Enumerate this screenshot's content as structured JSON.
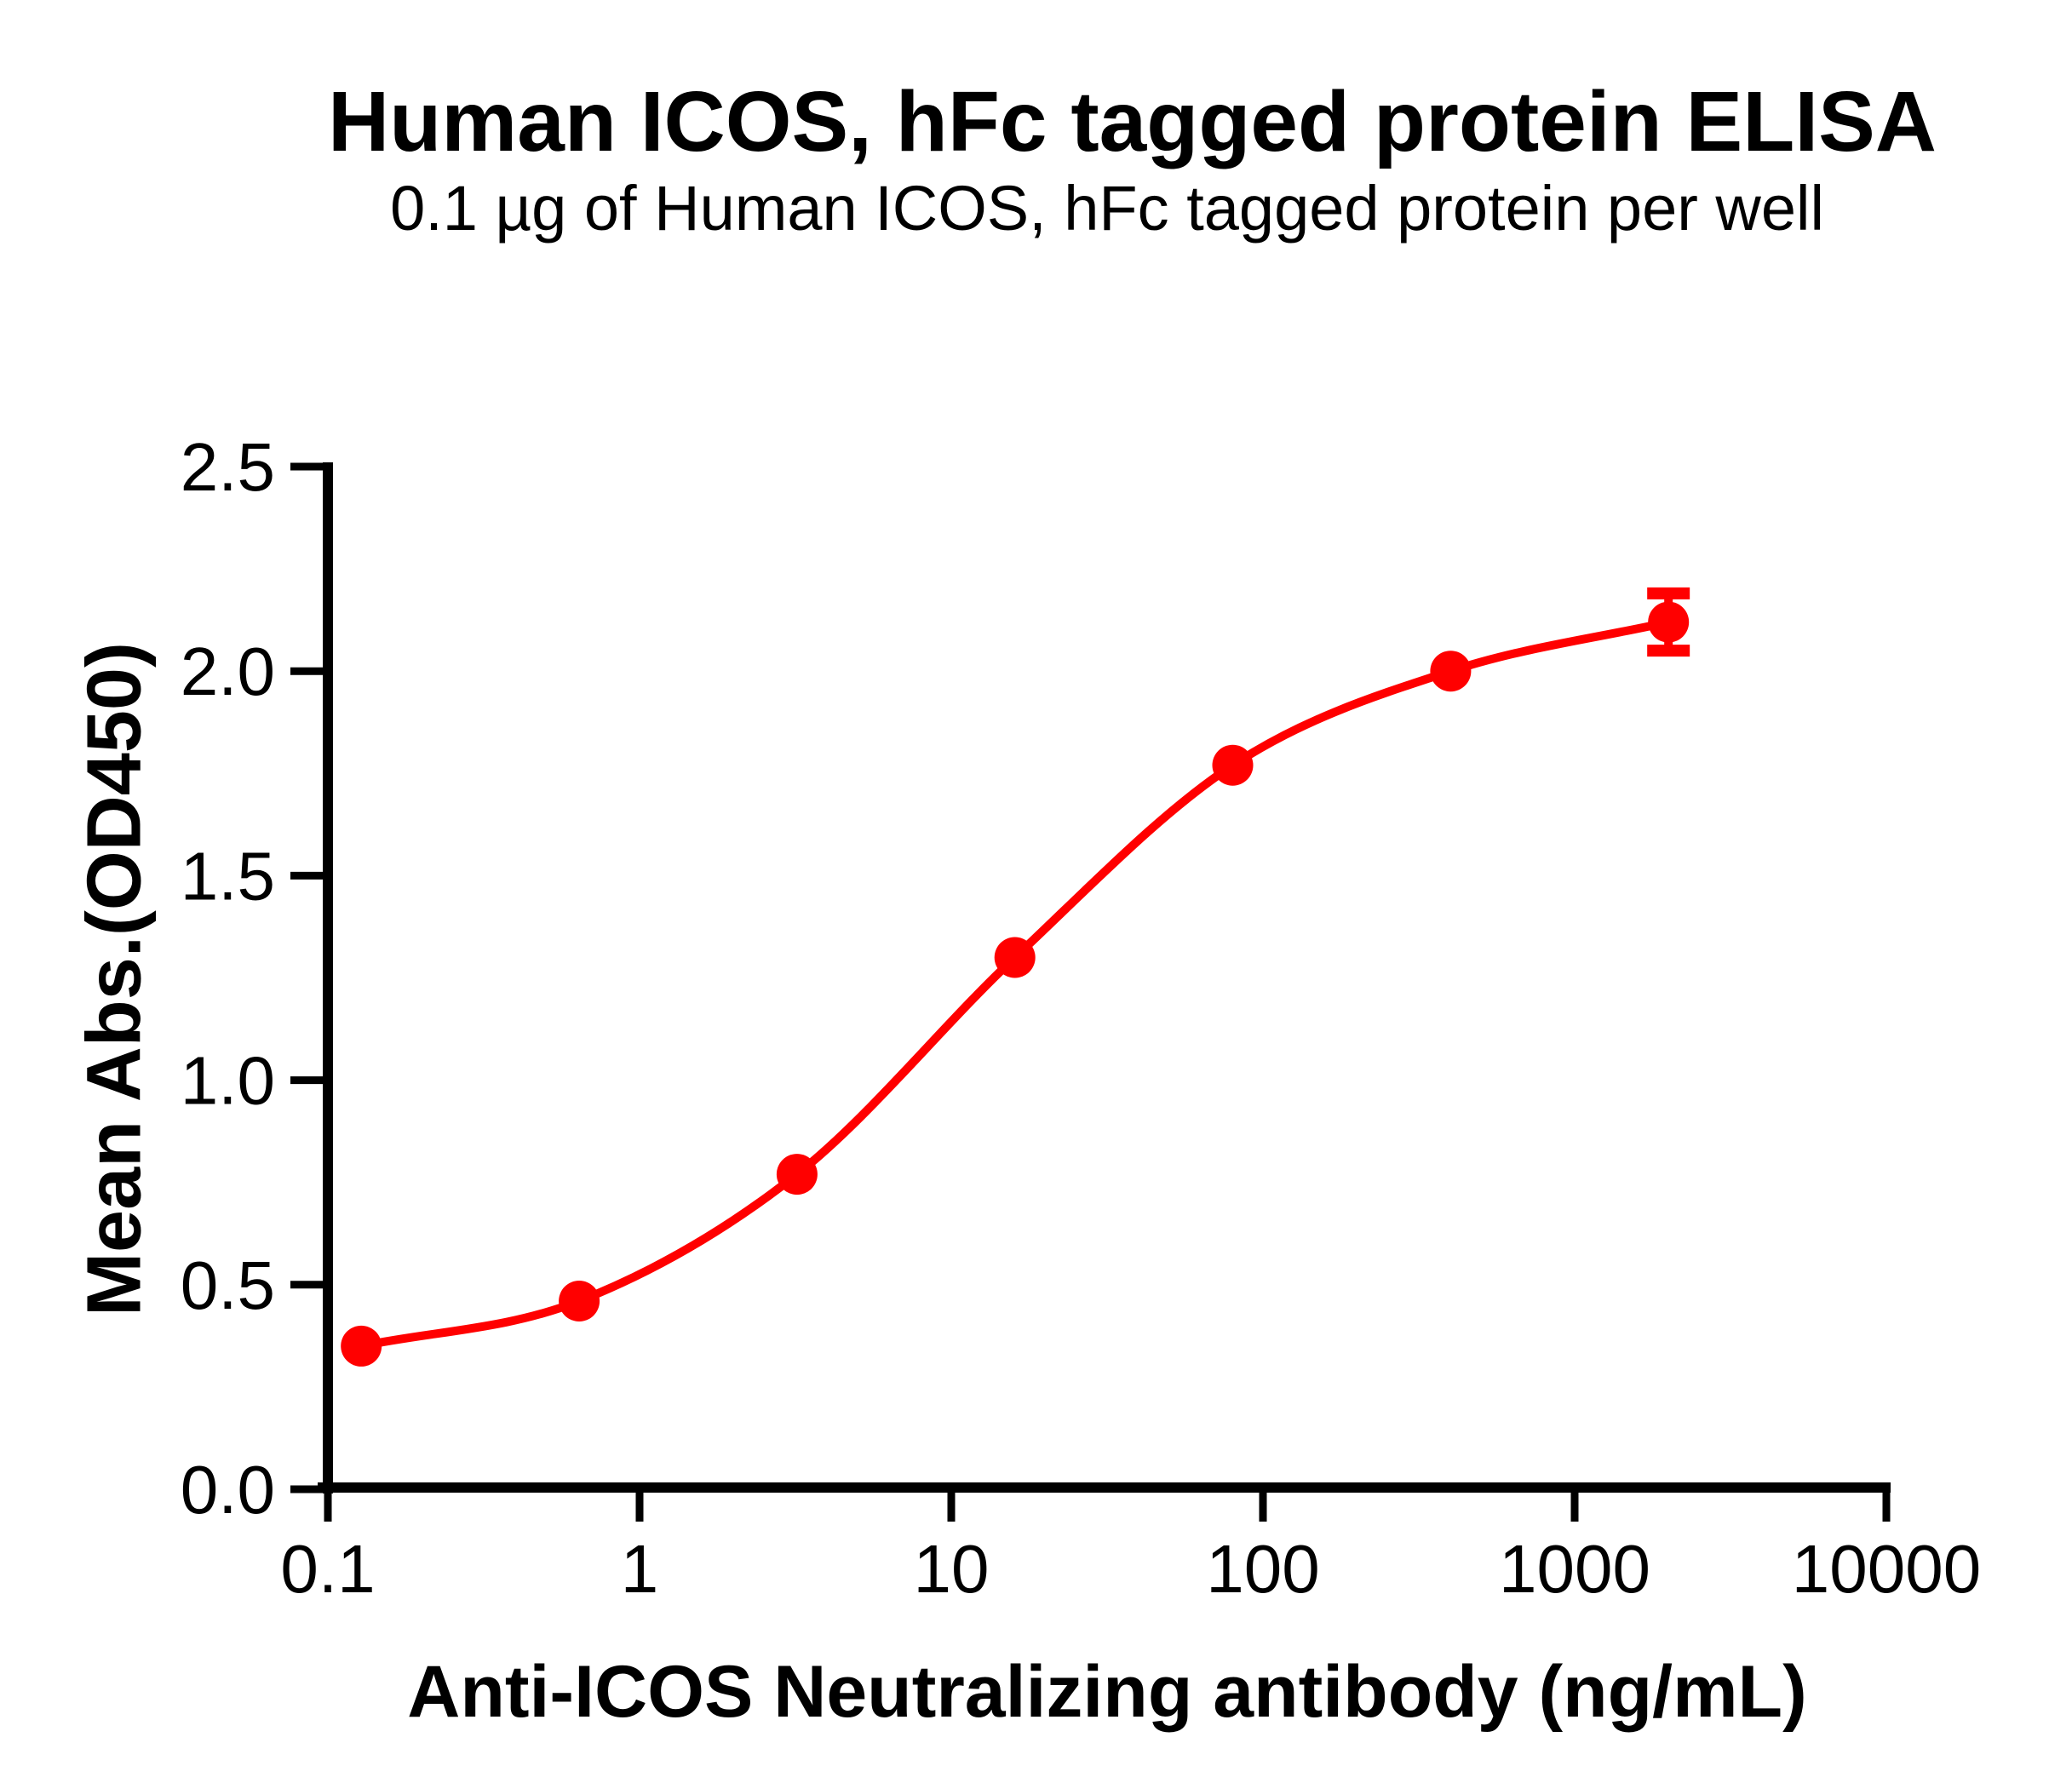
{
  "chart_data": {
    "type": "scatter",
    "title": "Human ICOS, hFc tagged protein ELISA",
    "subtitle": "0.1 µg of Human ICOS, hFc tagged protein per well",
    "xlabel": "Anti-ICOS Neutralizing antibody (ng/mL)",
    "ylabel": "Mean Abs.(OD450)",
    "x_scale": "log10",
    "xlim": [
      0.1,
      10000
    ],
    "ylim": [
      0,
      2.5
    ],
    "x_ticks": [
      "0.1",
      "1",
      "10",
      "100",
      "1000",
      "10000"
    ],
    "y_ticks": [
      "0.0",
      "0.5",
      "1.0",
      "1.5",
      "2.0",
      "2.5"
    ],
    "x": [
      0.128,
      0.64,
      3.2,
      16,
      80,
      400,
      2000
    ],
    "y": [
      0.35,
      0.46,
      0.77,
      1.3,
      1.77,
      2.0,
      2.12
    ],
    "y_errors": [
      0,
      0,
      0,
      0,
      0,
      0,
      0.07
    ],
    "curve_fit": "sigmoidal dose-response through points",
    "grid": false,
    "legend": "none",
    "marker_color": "#FF0000",
    "line_color": "#FF0000",
    "axis_color": "#000000",
    "text_color": "#000000"
  }
}
